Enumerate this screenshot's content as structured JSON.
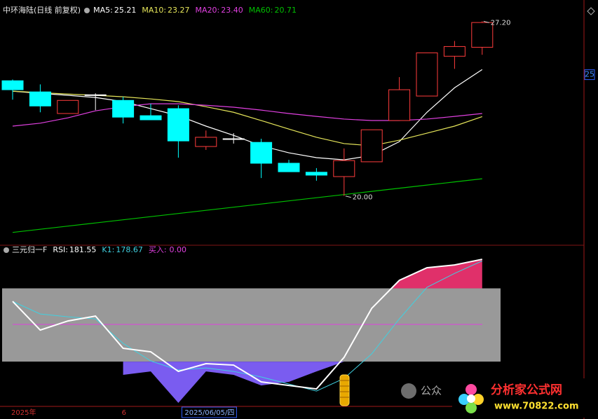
{
  "chart_data": [
    {
      "type": "candlestick",
      "title": "中环海陆(日线 前复权)",
      "open": [
        24.75,
        24.29,
        23.4,
        24.17,
        23.94,
        23.31,
        23.6,
        22.04,
        22.36,
        22.21,
        21.35,
        20.98,
        20.8,
        21.41,
        23.11,
        24.12,
        25.76,
        26.13
      ],
      "close": [
        24.38,
        23.71,
        23.94,
        24.17,
        23.25,
        23.14,
        22.27,
        22.42,
        22.36,
        21.35,
        21.0,
        20.86,
        21.46,
        22.73,
        24.38,
        25.9,
        26.16,
        27.15
      ],
      "high": [
        24.8,
        24.6,
        23.94,
        24.23,
        24.09,
        23.8,
        23.74,
        22.7,
        22.59,
        22.36,
        21.49,
        21.15,
        21.96,
        22.73,
        24.9,
        25.9,
        26.39,
        27.2
      ],
      "low": [
        23.97,
        23.45,
        23.4,
        23.54,
        22.99,
        23.14,
        21.58,
        21.9,
        22.16,
        20.74,
        21.0,
        20.63,
        20.0,
        21.41,
        23.11,
        24.12,
        25.24,
        25.82
      ],
      "up_color": "#ff3c3c",
      "down_color": "#00ffff",
      "doji_color": "#ffffff",
      "series": [
        {
          "name": "MA5:",
          "color": "#ffffff",
          "values": [
            24.32,
            24.23,
            24.15,
            24.06,
            23.89,
            23.6,
            23.31,
            22.88,
            22.5,
            22.07,
            21.78,
            21.58,
            21.49,
            21.67,
            22.24,
            23.45,
            24.46,
            25.21
          ]
        },
        {
          "name": "MA10:",
          "color": "#e6e65a",
          "values": [
            24.32,
            24.26,
            24.2,
            24.15,
            24.09,
            24.0,
            23.89,
            23.68,
            23.45,
            23.11,
            22.76,
            22.42,
            22.16,
            22.07,
            22.3,
            22.59,
            22.88,
            23.27
          ]
        },
        {
          "name": "MA20:",
          "color": "#e040e0",
          "values": [
            22.88,
            23.0,
            23.22,
            23.51,
            23.68,
            23.8,
            23.8,
            23.74,
            23.66,
            23.54,
            23.4,
            23.28,
            23.17,
            23.11,
            23.11,
            23.17,
            23.28,
            23.4
          ],
          "value_labels": [
            null,
            null,
            null,
            null,
            null,
            null,
            null,
            null,
            null,
            null,
            null,
            null,
            null,
            null,
            null,
            null,
            null,
            "23.40"
          ]
        },
        {
          "name": "MA60:",
          "color": "#00c000",
          "values": [
            18.5,
            18.63,
            18.76,
            18.89,
            19.02,
            19.15,
            19.28,
            19.41,
            19.54,
            19.67,
            19.8,
            19.93,
            20.06,
            20.19,
            20.32,
            20.45,
            20.58,
            20.71
          ]
        }
      ],
      "annotations": [
        {
          "index": 17,
          "value": 27.2,
          "label": "27.20"
        },
        {
          "index": 12,
          "value": 20,
          "label": "20.00"
        }
      ],
      "ylim": [
        18,
        27.5
      ],
      "yticks": [
        25
      ]
    },
    {
      "type": "line",
      "title": "三元归一F",
      "categories": [
        "2025年",
        null,
        null,
        null,
        "6",
        null,
        "2025/06/05/四",
        null,
        null,
        null,
        null,
        null,
        null,
        null,
        null,
        null,
        null,
        null
      ],
      "highlight": 6,
      "series": [
        {
          "name": "RSI:",
          "color": "#ffffff",
          "values": [
            106.9,
            55.9,
            72.1,
            80.8,
            23.6,
            17.4,
            -17.4,
            -3.7,
            -6.2,
            -36.0,
            -42.3,
            -48.5,
            7.5,
            94.5,
            144.2,
            166.6,
            171.5,
            181.55
          ]
        },
        {
          "name": "K1:",
          "color": "#40d0e0",
          "values": [
            106.9,
            84.5,
            79.5,
            75.8,
            32.3,
            1.2,
            -14.9,
            -11.2,
            -17.4,
            -27.3,
            -39.8,
            -52.2,
            -29.8,
            13.7,
            75.8,
            131.8,
            156.6,
            178.67
          ]
        }
      ],
      "buy": {
        "name": "买入:",
        "value": 0,
        "value_label": "0.00",
        "color": "#e040e0"
      },
      "lower_area": {
        "color": "#7a5cf0",
        "values": [
          null,
          null,
          null,
          null,
          -23.6,
          -17.4,
          -73.3,
          -17.4,
          -23.6,
          -42.3,
          -36.0,
          -17.4,
          0,
          null,
          null,
          null,
          null,
          null
        ]
      },
      "band": {
        "range": [
          0,
          130
        ],
        "color": "#999999"
      },
      "upper_fill_color": "#e0306a",
      "ref_line": {
        "value": 66,
        "color": "#e040e0"
      },
      "ylim": [
        -77,
        209
      ]
    }
  ],
  "watermark": {
    "wechat": "公众",
    "site": "分析家公式网",
    "url": "www.70822.com"
  }
}
